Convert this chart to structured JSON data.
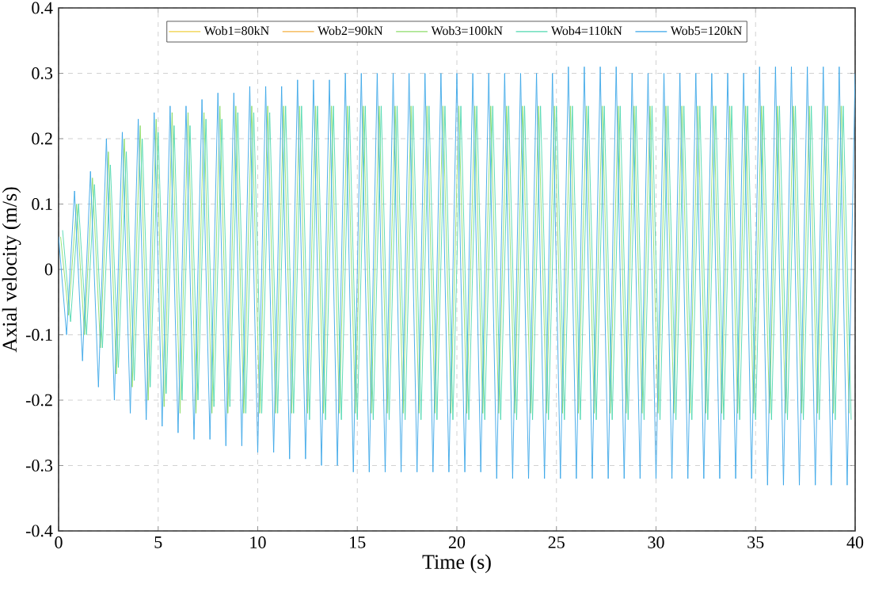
{
  "chart_data": {
    "type": "line",
    "xlabel": "Time (s)",
    "ylabel": "Axial velocity (m/s)",
    "xlim": [
      0,
      40
    ],
    "ylim": [
      -0.4,
      0.4
    ],
    "xticks": [
      0,
      5,
      10,
      15,
      20,
      25,
      30,
      35,
      40
    ],
    "yticks": [
      -0.4,
      -0.3,
      -0.2,
      -0.1,
      0,
      0.1,
      0.2,
      0.3,
      0.4
    ],
    "grid": true,
    "legend": "top",
    "line_style": "solid",
    "x": [
      0,
      0.4,
      0.8,
      1.2,
      1.6,
      2,
      2.4,
      2.8,
      3.2,
      3.6,
      4,
      4.4,
      4.8,
      5.2,
      5.6,
      6,
      6.4,
      6.8,
      7.2,
      7.6,
      8,
      8.4,
      8.8,
      9.2,
      9.6,
      10,
      10.4,
      10.8,
      11.2,
      11.6,
      12,
      12.4,
      12.8,
      13.2,
      13.6,
      14,
      14.4,
      14.8,
      15.2,
      15.6,
      16,
      16.4,
      16.8,
      17.2,
      17.6,
      18,
      18.4,
      18.8,
      19.2,
      19.6,
      20,
      20.4,
      20.8,
      21.2,
      21.6,
      22,
      22.4,
      22.8,
      23.2,
      23.6,
      24,
      24.4,
      24.8,
      25.2,
      25.6,
      26,
      26.4,
      26.8,
      27.2,
      27.6,
      28,
      28.4,
      28.8,
      29.2,
      29.6,
      30,
      30.4,
      30.8,
      31.2,
      31.6,
      32,
      32.4,
      32.8,
      33.2,
      33.6,
      34,
      34.4,
      34.8,
      35.2,
      35.6,
      36,
      36.4,
      36.8,
      37.2,
      37.6,
      38,
      38.4,
      38.8,
      39.2,
      39.6,
      40
    ],
    "series": [
      {
        "name": "Wob1=80kN",
        "color": "#f0d040",
        "values": [
          null,
          null,
          null,
          null,
          null,
          null,
          null,
          null,
          null,
          null,
          null,
          null,
          null,
          null,
          null,
          null,
          null,
          null,
          null,
          null,
          null,
          null,
          null,
          null,
          null,
          null,
          null,
          null,
          null,
          null,
          null,
          null,
          null,
          null,
          null,
          null,
          null,
          null,
          null,
          null,
          null,
          null,
          null,
          null,
          null,
          null,
          null,
          null,
          null,
          null,
          null,
          null,
          null,
          null,
          null,
          null,
          null,
          null,
          null,
          null,
          null,
          null,
          null,
          null,
          null,
          null,
          null,
          null,
          null,
          null,
          null,
          null,
          null,
          null,
          null,
          null,
          null,
          null,
          null,
          null,
          null,
          null,
          null,
          null,
          null,
          null,
          null,
          null,
          null,
          null,
          null,
          null,
          null,
          null,
          null,
          null,
          null,
          null,
          null,
          null,
          null
        ]
      },
      {
        "name": "Wob2=90kN",
        "color": "#f5b041",
        "values": [
          null,
          null,
          null,
          null,
          null,
          null,
          null,
          null,
          null,
          null,
          null,
          null,
          null,
          null,
          null,
          null,
          null,
          null,
          null,
          null,
          null,
          null,
          null,
          null,
          null,
          null,
          null,
          null,
          null,
          null,
          null,
          null,
          null,
          null,
          null,
          null,
          null,
          null,
          null,
          null,
          null,
          null,
          null,
          null,
          null,
          null,
          null,
          null,
          null,
          null,
          null,
          null,
          null,
          null,
          null,
          null,
          null,
          null,
          null,
          null,
          null,
          null,
          null,
          null,
          null,
          null,
          null,
          null,
          null,
          null,
          null,
          null,
          null,
          null,
          null,
          null,
          null,
          null,
          null,
          null,
          null,
          null,
          null,
          null,
          null,
          null,
          null,
          null,
          null,
          null,
          null,
          null,
          null,
          null,
          null,
          null,
          null,
          null,
          null,
          null,
          null
        ]
      },
      {
        "name": "Wob3=100kN",
        "color": "#8ddc6a",
        "x": [
          0.1,
          0.5,
          0.9,
          1.3,
          1.7,
          2.1,
          2.5,
          2.9,
          3.3,
          3.7,
          4.1,
          4.5,
          4.9,
          5.3,
          5.7,
          6.1,
          6.5,
          6.9,
          7.3,
          7.7,
          8.1,
          8.5,
          8.9,
          9.3,
          9.7,
          10.1,
          10.5,
          10.9,
          11.3,
          11.7,
          12.1,
          12.5,
          12.9,
          13.3,
          13.7,
          14.1,
          14.5,
          14.9,
          15.3,
          15.7,
          16.1,
          16.5,
          16.9,
          17.3,
          17.7,
          18.1,
          18.5,
          18.9,
          19.3,
          19.7,
          20.1,
          20.5,
          20.9,
          21.3,
          21.7,
          22.1,
          22.5,
          22.9,
          23.3,
          23.7,
          24.1,
          24.5,
          24.9,
          25.3,
          25.7,
          26.1,
          26.5,
          26.9,
          27.3,
          27.7,
          28.1,
          28.5,
          28.9,
          29.3,
          29.7,
          30.1,
          30.5,
          30.9,
          31.3,
          31.7,
          32.1,
          32.5,
          32.9,
          33.3,
          33.7,
          34.1,
          34.5,
          34.9,
          35.3,
          35.7,
          36.1,
          36.5,
          36.9,
          37.3,
          37.7,
          38.1,
          38.5,
          38.9,
          39.3,
          39.7
        ],
        "values": [
          0.05,
          -0.07,
          0.1,
          -0.1,
          0.14,
          -0.12,
          0.18,
          -0.16,
          0.2,
          -0.18,
          0.22,
          -0.2,
          0.23,
          -0.21,
          0.24,
          -0.22,
          0.24,
          -0.22,
          0.24,
          -0.22,
          0.25,
          -0.22,
          0.25,
          -0.22,
          0.25,
          -0.22,
          0.25,
          -0.22,
          0.25,
          -0.22,
          0.25,
          -0.22,
          0.25,
          -0.22,
          0.25,
          -0.22,
          0.25,
          -0.22,
          0.25,
          -0.22,
          0.25,
          -0.22,
          0.25,
          -0.22,
          0.25,
          -0.22,
          0.25,
          -0.22,
          0.25,
          -0.22,
          0.25,
          -0.22,
          0.25,
          -0.22,
          0.25,
          -0.22,
          0.25,
          -0.22,
          0.25,
          -0.22,
          0.25,
          -0.22,
          0.25,
          -0.22,
          0.25,
          -0.22,
          0.25,
          -0.22,
          0.25,
          -0.22,
          0.25,
          -0.22,
          0.25,
          -0.22,
          0.25,
          -0.22,
          0.25,
          -0.22,
          0.25,
          -0.22,
          0.25,
          -0.22,
          0.25,
          -0.22,
          0.25,
          -0.22,
          0.25,
          -0.22,
          0.25,
          -0.22,
          0.25,
          -0.22,
          0.25,
          -0.22,
          0.25,
          -0.22,
          0.25,
          -0.22,
          0.25,
          -0.22
        ]
      },
      {
        "name": "Wob4=110kN",
        "color": "#4fd8b0",
        "x": [
          0.2,
          0.6,
          1,
          1.4,
          1.8,
          2.2,
          2.6,
          3,
          3.4,
          3.8,
          4.2,
          4.6,
          5,
          5.4,
          5.8,
          6.2,
          6.6,
          7,
          7.4,
          7.8,
          8.2,
          8.6,
          9,
          9.4,
          9.8,
          10.2,
          10.6,
          11,
          11.4,
          11.8,
          12.2,
          12.6,
          13,
          13.4,
          13.8,
          14.2,
          14.6,
          15,
          15.4,
          15.8,
          16.2,
          16.6,
          17,
          17.4,
          17.8,
          18.2,
          18.6,
          19,
          19.4,
          19.8,
          20.2,
          20.6,
          21,
          21.4,
          21.8,
          22.2,
          22.6,
          23,
          23.4,
          23.8,
          24.2,
          24.6,
          25,
          25.4,
          25.8,
          26.2,
          26.6,
          27,
          27.4,
          27.8,
          28.2,
          28.6,
          29,
          29.4,
          29.8,
          30.2,
          30.6,
          31,
          31.4,
          31.8,
          32.2,
          32.6,
          33,
          33.4,
          33.8,
          34.2,
          34.6,
          35,
          35.4,
          35.8,
          36.2,
          36.6,
          37,
          37.4,
          37.8,
          38.2,
          38.6,
          39,
          39.4,
          39.8
        ],
        "values": [
          0.06,
          -0.08,
          0.1,
          -0.1,
          0.13,
          -0.12,
          0.16,
          -0.15,
          0.18,
          -0.17,
          0.2,
          -0.18,
          0.21,
          -0.19,
          0.22,
          -0.2,
          0.22,
          -0.2,
          0.23,
          -0.21,
          0.23,
          -0.21,
          0.24,
          -0.22,
          0.24,
          -0.22,
          0.24,
          -0.22,
          0.25,
          -0.22,
          0.25,
          -0.23,
          0.25,
          -0.23,
          0.25,
          -0.23,
          0.25,
          -0.23,
          0.25,
          -0.23,
          0.25,
          -0.23,
          0.25,
          -0.23,
          0.25,
          -0.23,
          0.25,
          -0.23,
          0.25,
          -0.23,
          0.25,
          -0.23,
          0.25,
          -0.23,
          0.25,
          -0.23,
          0.25,
          -0.23,
          0.25,
          -0.23,
          0.25,
          -0.23,
          0.25,
          -0.23,
          0.25,
          -0.23,
          0.25,
          -0.23,
          0.25,
          -0.23,
          0.25,
          -0.23,
          0.25,
          -0.23,
          0.25,
          -0.23,
          0.25,
          -0.23,
          0.25,
          -0.23,
          0.25,
          -0.23,
          0.25,
          -0.23,
          0.25,
          -0.23,
          0.25,
          -0.23,
          0.25,
          -0.23,
          0.25,
          -0.23,
          0.25,
          -0.23,
          0.25,
          -0.23,
          0.25,
          -0.23,
          0.25,
          -0.23
        ]
      },
      {
        "name": "Wob5=120kN",
        "color": "#3aa6e8",
        "values": [
          0.05,
          -0.1,
          0.12,
          -0.14,
          0.15,
          -0.18,
          0.2,
          -0.2,
          0.21,
          -0.22,
          0.23,
          -0.23,
          0.24,
          -0.24,
          0.25,
          -0.25,
          0.25,
          -0.26,
          0.26,
          -0.26,
          0.27,
          -0.27,
          0.27,
          -0.27,
          0.28,
          -0.28,
          0.28,
          -0.28,
          0.28,
          -0.29,
          0.29,
          -0.29,
          0.29,
          -0.3,
          0.29,
          -0.3,
          0.3,
          -0.31,
          0.3,
          -0.31,
          0.3,
          -0.31,
          0.3,
          -0.31,
          0.3,
          -0.31,
          0.3,
          -0.31,
          0.3,
          -0.31,
          0.3,
          -0.31,
          0.3,
          -0.31,
          0.3,
          -0.32,
          0.3,
          -0.32,
          0.3,
          -0.32,
          0.3,
          -0.32,
          0.3,
          -0.32,
          0.31,
          -0.32,
          0.31,
          -0.32,
          0.31,
          -0.32,
          0.31,
          -0.32,
          0.3,
          -0.32,
          0.3,
          -0.32,
          0.3,
          -0.32,
          0.3,
          -0.32,
          0.3,
          -0.32,
          0.3,
          -0.32,
          0.3,
          -0.32,
          0.3,
          -0.32,
          0.31,
          -0.33,
          0.31,
          -0.33,
          0.31,
          -0.33,
          0.31,
          -0.33,
          0.31,
          -0.33,
          0.31,
          -0.33,
          0.3
        ]
      }
    ]
  }
}
